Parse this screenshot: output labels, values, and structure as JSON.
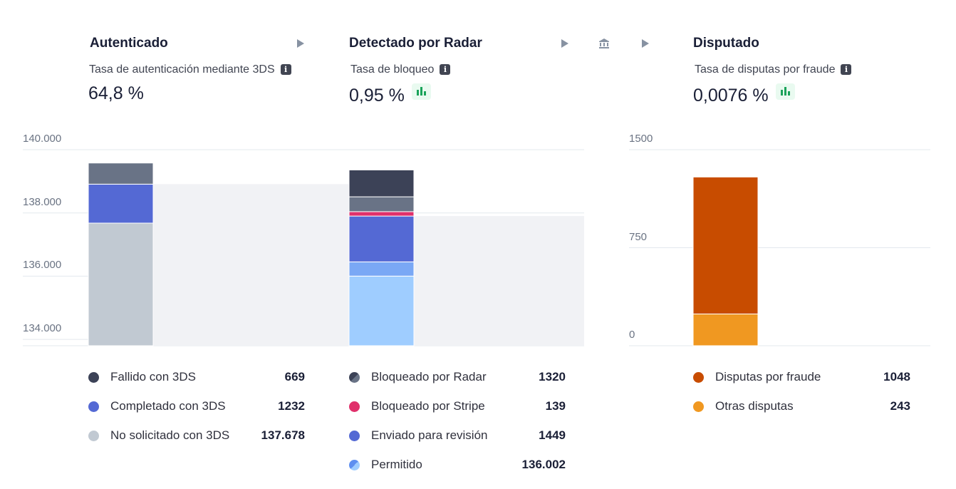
{
  "sections": {
    "authenticated": {
      "title": "Autenticado",
      "metric_label": "Tasa de autenticación mediante 3DS",
      "metric_value": "64,8 %"
    },
    "radar": {
      "title": "Detectado por Radar",
      "metric_label": "Tasa de bloqueo",
      "metric_value": "0,95 %"
    },
    "disputed": {
      "title": "Disputado",
      "metric_label": "Tasa de disputas por fraude",
      "metric_value": "0,0076 %"
    }
  },
  "icons": {
    "info": "info-icon",
    "bars": "bar-chart-icon",
    "play": "play-icon",
    "bank": "bank-icon"
  },
  "colors": {
    "gridline": "#e3e8ee",
    "flow": "#f1f2f5",
    "growth_icon": "#1aa35a"
  },
  "chart_data": [
    {
      "type": "bar",
      "stacked": true,
      "ylim": [
        133800,
        140000
      ],
      "yticks": [
        "140.000",
        "138.000",
        "136.000",
        "134.000"
      ],
      "ytick_values": [
        140000,
        138000,
        136000,
        134000
      ],
      "grid": true,
      "bars": [
        {
          "name": "Autenticado",
          "segments": [
            {
              "name": "No solicitado con 3DS",
              "value": 137678,
              "color": "#c1c9d2"
            },
            {
              "name": "Completado con 3DS",
              "value": 1232,
              "color": "#5469d4"
            },
            {
              "name": "Fallido con 3DS",
              "value": 669,
              "color": "#697386"
            }
          ]
        },
        {
          "name": "Detectado por Radar",
          "segments": [
            {
              "name": "Permitido",
              "value": 136002,
              "color": "#9fcdff"
            },
            {
              "name": "Permitido",
              "value": 450,
              "color": "#7aa8f5"
            },
            {
              "name": "Enviado para revisión",
              "value": 1449,
              "color": "#5469d4"
            },
            {
              "name": "Bloqueado por Stripe",
              "value": 139,
              "color": "#e0306b"
            },
            {
              "name": "Bloqueado por Radar",
              "value": 470,
              "color": "#697386"
            },
            {
              "name": "Bloqueado por Radar",
              "value": 850,
              "color": "#3c4257"
            }
          ]
        }
      ],
      "legends": [
        [
          {
            "label": "Fallido con 3DS",
            "value": "669",
            "color": "#3c4257",
            "half": false
          },
          {
            "label": "Completado con 3DS",
            "value": "1232",
            "color": "#5469d4",
            "half": false
          },
          {
            "label": "No solicitado con 3DS",
            "value": "137.678",
            "color": "#c1c9d2",
            "half": false
          }
        ],
        [
          {
            "label": "Bloqueado por Radar",
            "value": "1320",
            "color": "#3c4257",
            "color2": "#697386",
            "half": true
          },
          {
            "label": "Bloqueado por Stripe",
            "value": "139",
            "color": "#e0306b",
            "half": false
          },
          {
            "label": "Enviado para revisión",
            "value": "1449",
            "color": "#5469d4",
            "half": false
          },
          {
            "label": "Permitido",
            "value": "136.002",
            "color": "#5e8ff0",
            "color2": "#9fcdff",
            "half": true
          }
        ]
      ]
    },
    {
      "type": "bar",
      "stacked": true,
      "ylim": [
        0,
        1500
      ],
      "yticks": [
        "1500",
        "750",
        "0"
      ],
      "ytick_values": [
        1500,
        750,
        0
      ],
      "grid": true,
      "bars": [
        {
          "name": "Disputado",
          "segments": [
            {
              "name": "Otras disputas",
              "value": 243,
              "color": "#f09821"
            },
            {
              "name": "Disputas por fraude",
              "value": 1048,
              "color": "#c84c00"
            }
          ]
        }
      ],
      "legends": [
        [
          {
            "label": "Disputas por fraude",
            "value": "1048",
            "color": "#c84c00",
            "half": false
          },
          {
            "label": "Otras disputas",
            "value": "243",
            "color": "#f09821",
            "half": false
          }
        ]
      ]
    }
  ]
}
